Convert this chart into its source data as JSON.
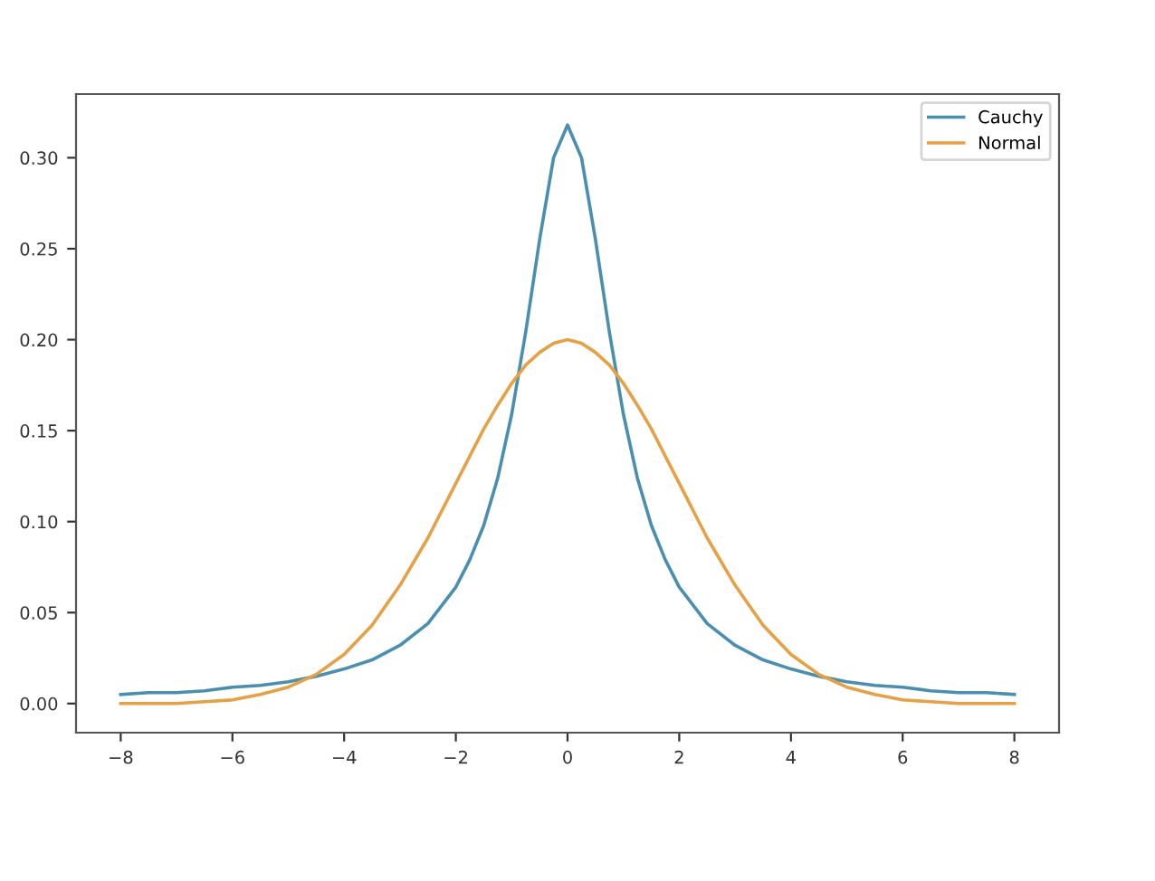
{
  "chart_data": {
    "type": "line",
    "x": [
      -8,
      -7.5,
      -7,
      -6.5,
      -6,
      -5.5,
      -5,
      -4.5,
      -4,
      -3.5,
      -3,
      -2.5,
      -2,
      -1.75,
      -1.5,
      -1.25,
      -1,
      -0.75,
      -0.5,
      -0.25,
      0,
      0.25,
      0.5,
      0.75,
      1,
      1.25,
      1.5,
      1.75,
      2,
      2.5,
      3,
      3.5,
      4,
      4.5,
      5,
      5.5,
      6,
      6.5,
      7,
      7.5,
      8
    ],
    "series": [
      {
        "name": "Cauchy",
        "color": "#4b8fb0",
        "values": [
          0.005,
          0.006,
          0.006,
          0.007,
          0.009,
          0.01,
          0.012,
          0.015,
          0.019,
          0.024,
          0.032,
          0.044,
          0.064,
          0.079,
          0.098,
          0.124,
          0.159,
          0.204,
          0.255,
          0.3,
          0.318,
          0.3,
          0.255,
          0.204,
          0.159,
          0.124,
          0.098,
          0.079,
          0.064,
          0.044,
          0.032,
          0.024,
          0.019,
          0.015,
          0.012,
          0.01,
          0.009,
          0.007,
          0.006,
          0.006,
          0.005
        ]
      },
      {
        "name": "Normal",
        "color": "#e6a045",
        "values": [
          0.0,
          0.0,
          0.0,
          0.001,
          0.002,
          0.005,
          0.009,
          0.016,
          0.027,
          0.043,
          0.065,
          0.091,
          0.121,
          0.136,
          0.151,
          0.164,
          0.176,
          0.186,
          0.193,
          0.198,
          0.2,
          0.198,
          0.193,
          0.186,
          0.176,
          0.164,
          0.151,
          0.136,
          0.121,
          0.091,
          0.065,
          0.043,
          0.027,
          0.016,
          0.009,
          0.005,
          0.002,
          0.001,
          0.0,
          0.0,
          0.0
        ]
      }
    ],
    "xlim": [
      -8.8,
      8.8
    ],
    "ylim": [
      -0.016,
      0.335
    ],
    "xticks": [
      {
        "value": -8,
        "label": "−8"
      },
      {
        "value": -6,
        "label": "−6"
      },
      {
        "value": -4,
        "label": "−4"
      },
      {
        "value": -2,
        "label": "−2"
      },
      0,
      2,
      4,
      6,
      8
    ],
    "yticks": [
      {
        "value": 0,
        "label": "0.00"
      },
      {
        "value": 0.05,
        "label": "0.05"
      },
      {
        "value": 0.1,
        "label": "0.10"
      },
      {
        "value": 0.15,
        "label": "0.15"
      },
      {
        "value": 0.2,
        "label": "0.20"
      },
      {
        "value": 0.25,
        "label": "0.25"
      },
      {
        "value": 0.3,
        "label": "0.30"
      }
    ],
    "legend": "top right",
    "line_style": "solid"
  }
}
